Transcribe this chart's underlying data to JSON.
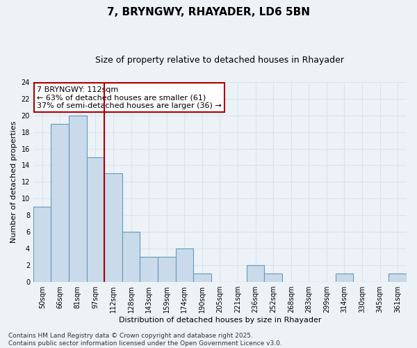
{
  "title": "7, BRYNGWY, RHAYADER, LD6 5BN",
  "subtitle": "Size of property relative to detached houses in Rhayader",
  "xlabel": "Distribution of detached houses by size in Rhayader",
  "ylabel": "Number of detached properties",
  "categories": [
    "50sqm",
    "66sqm",
    "81sqm",
    "97sqm",
    "112sqm",
    "128sqm",
    "143sqm",
    "159sqm",
    "174sqm",
    "190sqm",
    "205sqm",
    "221sqm",
    "236sqm",
    "252sqm",
    "268sqm",
    "283sqm",
    "299sqm",
    "314sqm",
    "330sqm",
    "345sqm",
    "361sqm"
  ],
  "values": [
    9,
    19,
    20,
    15,
    13,
    6,
    3,
    3,
    4,
    1,
    0,
    0,
    2,
    1,
    0,
    0,
    0,
    1,
    0,
    0,
    1
  ],
  "bar_color": "#c9daea",
  "bar_edge_color": "#6699bb",
  "ylim": [
    0,
    24
  ],
  "yticks": [
    0,
    2,
    4,
    6,
    8,
    10,
    12,
    14,
    16,
    18,
    20,
    22,
    24
  ],
  "vline_x_index": 4,
  "vline_color": "#aa0000",
  "annotation_text": "7 BRYNGWY: 112sqm\n← 63% of detached houses are smaller (61)\n37% of semi-detached houses are larger (36) →",
  "annotation_box_facecolor": "#ffffff",
  "annotation_box_edgecolor": "#aa0000",
  "footer_text": "Contains HM Land Registry data © Crown copyright and database right 2025.\nContains public sector information licensed under the Open Government Licence v3.0.",
  "background_color": "#edf2f7",
  "grid_color": "#d8e4ee",
  "title_fontsize": 11,
  "subtitle_fontsize": 9,
  "axis_label_fontsize": 8,
  "tick_fontsize": 7,
  "annotation_fontsize": 8,
  "footer_fontsize": 6.5
}
